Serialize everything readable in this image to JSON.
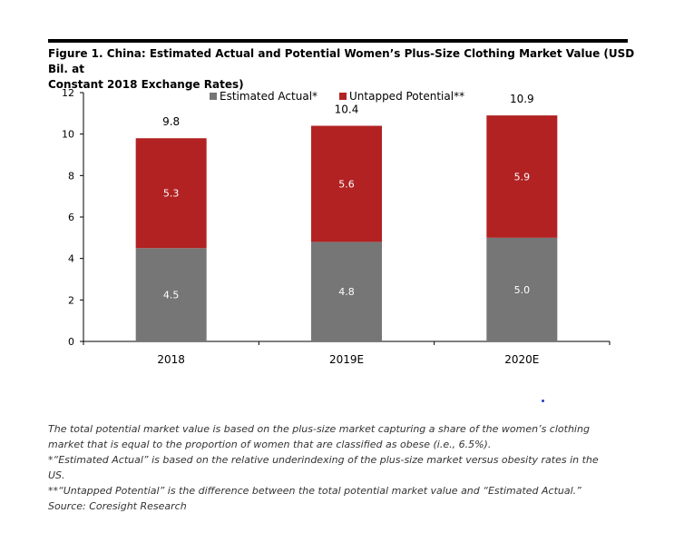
{
  "figure": {
    "title_line1": "Figure 1. China: Estimated Actual and Potential Women’s Plus-Size Clothing Market Value (USD Bil. at",
    "title_line2": "Constant 2018 Exchange Rates)"
  },
  "chart_data": {
    "type": "bar",
    "stacked": true,
    "categories": [
      "2018",
      "2019E",
      "2020E"
    ],
    "series": [
      {
        "name": "Estimated Actual*",
        "values": [
          4.5,
          4.8,
          5.0
        ],
        "color": "#767676"
      },
      {
        "name": "Untapped Potential**",
        "values": [
          5.3,
          5.6,
          5.9
        ],
        "color": "#b22222"
      }
    ],
    "totals": [
      9.8,
      10.4,
      10.9
    ],
    "ylim": [
      0,
      12
    ],
    "yticks": [
      0,
      2,
      4,
      6,
      8,
      10,
      12
    ],
    "legend_position": "top",
    "grid": false
  },
  "notes": [
    "The total potential market value is based on the plus-size market capturing a share of the women’s clothing",
    "market that is equal to the proportion of women that are classified as obese (i.e., 6.5%).",
    "*“Estimated Actual” is based on the relative underindexing of the plus-size market versus obesity rates in the",
    "US.",
    "**“Untapped Potential” is the difference between the total potential market value and “Estimated Actual.”",
    "Source: Coresight Research"
  ]
}
